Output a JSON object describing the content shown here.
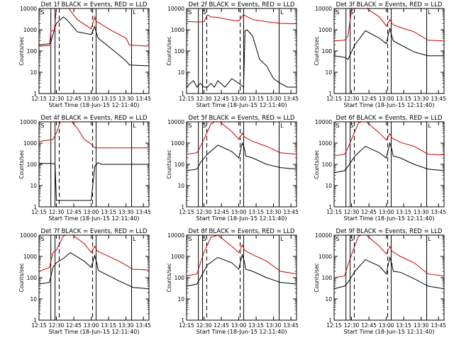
{
  "xlabel": "Start Time (18-Jun-15 12:11:40)",
  "ylabel": "Counts/sec",
  "colors": {
    "events": "#000000",
    "lld": "#cc0000"
  },
  "x_ticks": [
    "12:15",
    "12:30",
    "12:45",
    "13:00",
    "13:15",
    "13:30",
    "13:45"
  ],
  "y_ticks": [
    "1",
    "10",
    "100",
    "1000",
    "10000"
  ],
  "chart_data": [
    {
      "type": "line",
      "title": "Det 1f BLACK = Events, RED = LLD",
      "row": 0,
      "col": 0,
      "xlim": [
        12.25,
        13.83
      ],
      "ylim": [
        1,
        10000
      ],
      "yscale": "log",
      "series": [
        {
          "key": "events",
          "x": [
            12.25,
            12.4,
            12.42,
            12.47,
            12.5,
            12.6,
            12.65,
            12.8,
            13.0,
            13.05,
            13.07,
            13.1,
            13.3,
            13.5,
            13.55,
            13.83
          ],
          "values": [
            190,
            220,
            260,
            1000,
            2000,
            4000,
            3000,
            800,
            600,
            1400,
            800,
            400,
            120,
            35,
            22,
            20
          ]
        },
        {
          "key": "lld",
          "x": [
            12.25,
            12.4,
            12.42,
            12.47,
            12.5,
            12.6,
            12.65,
            12.8,
            13.0,
            13.05,
            13.07,
            13.1,
            13.3,
            13.5,
            13.55,
            13.83
          ],
          "values": [
            170,
            180,
            850,
            950,
            10000,
            15000,
            13000,
            3000,
            1100,
            4000,
            2500,
            2200,
            900,
            400,
            190,
            170
          ]
        }
      ],
      "vlines_solid": [
        12.42,
        12.48,
        13.07,
        13.58
      ],
      "vlines_dashed": [
        12.54,
        13.02
      ],
      "markers": [
        {
          "text": "S",
          "x": 12.3
        },
        {
          "text": "L",
          "x": 13.62
        }
      ]
    },
    {
      "type": "line",
      "title": "Det 2f BLACK = Events, RED = LLD",
      "row": 0,
      "col": 1,
      "xlim": [
        12.25,
        13.83
      ],
      "ylim": [
        1,
        10000
      ],
      "yscale": "log",
      "series": [
        {
          "key": "events",
          "x": [
            12.25,
            12.3,
            12.35,
            12.4,
            12.45,
            12.5,
            12.55,
            12.6,
            12.65,
            12.7,
            12.8,
            12.9,
            13.0,
            13.07,
            13.09,
            13.12,
            13.2,
            13.3,
            13.4,
            13.5,
            13.6,
            13.7,
            13.83
          ],
          "values": [
            2,
            3,
            4,
            2,
            3,
            2,
            2,
            3,
            2,
            4,
            2,
            5,
            3,
            2,
            900,
            1000,
            500,
            40,
            20,
            5,
            3,
            2,
            2
          ]
        },
        {
          "key": "lld",
          "x": [
            12.25,
            12.4,
            12.5,
            12.55,
            12.6,
            12.7,
            12.8,
            12.9,
            13.0,
            13.07,
            13.1,
            13.2,
            13.4,
            13.6,
            13.83
          ],
          "values": [
            2500,
            2300,
            2400,
            5000,
            4000,
            3800,
            3200,
            2800,
            2600,
            5200,
            4500,
            3000,
            2400,
            2000,
            1900
          ]
        }
      ],
      "vlines_solid": [
        12.42,
        12.48,
        13.07,
        13.58
      ],
      "vlines_dashed": [
        12.54,
        13.02
      ],
      "markers": [
        {
          "text": "S",
          "x": 12.3
        },
        {
          "text": "G",
          "x": 12.5
        },
        {
          "text": "L",
          "x": 13.62
        }
      ]
    },
    {
      "type": "line",
      "title": "Det 3f BLACK = Events, RED = LLD",
      "row": 0,
      "col": 2,
      "xlim": [
        12.25,
        13.83
      ],
      "ylim": [
        1,
        10000
      ],
      "yscale": "log",
      "series": [
        {
          "key": "events",
          "x": [
            12.25,
            12.4,
            12.45,
            12.55,
            12.7,
            12.9,
            13.0,
            13.05,
            13.08,
            13.1,
            13.2,
            13.4,
            13.6,
            13.83
          ],
          "values": [
            60,
            50,
            40,
            200,
            900,
            400,
            220,
            1200,
            500,
            300,
            200,
            90,
            60,
            60
          ]
        },
        {
          "key": "lld",
          "x": [
            12.25,
            12.4,
            12.45,
            12.5,
            12.6,
            12.7,
            12.9,
            13.0,
            13.05,
            13.08,
            13.1,
            13.2,
            13.4,
            13.6,
            13.83
          ],
          "values": [
            300,
            320,
            500,
            9000,
            14000,
            11000,
            4000,
            1500,
            3000,
            2000,
            1700,
            1300,
            800,
            320,
            300
          ]
        }
      ],
      "vlines_solid": [
        12.42,
        12.48,
        13.07,
        13.58
      ],
      "vlines_dashed": [
        12.54,
        13.02
      ],
      "markers": [
        {
          "text": "S",
          "x": 12.3
        },
        {
          "text": "G",
          "x": 12.5
        },
        {
          "text": "L",
          "x": 13.62
        }
      ]
    },
    {
      "type": "line",
      "title": "Det 4f BLACK = Events, RED = LLD",
      "row": 1,
      "col": 0,
      "xlim": [
        12.25,
        13.83
      ],
      "ylim": [
        1,
        10000
      ],
      "yscale": "log",
      "series": [
        {
          "key": "events",
          "x": [
            12.25,
            12.4,
            12.48,
            12.5,
            13.0,
            13.05,
            13.1,
            13.15,
            13.3,
            13.6,
            13.83
          ],
          "values": [
            110,
            110,
            105,
            2,
            2,
            80,
            120,
            100,
            100,
            100,
            100
          ]
        },
        {
          "key": "lld",
          "x": [
            12.25,
            12.4,
            12.45,
            12.5,
            12.55,
            12.6,
            12.7,
            12.8,
            12.9,
            13.0,
            13.05,
            13.2,
            13.5,
            13.83
          ],
          "values": [
            1200,
            1400,
            1500,
            3000,
            9000,
            15000,
            12000,
            5000,
            1500,
            900,
            600,
            600,
            600,
            600
          ]
        }
      ],
      "vlines_solid": [
        12.42,
        12.48,
        13.07,
        13.58
      ],
      "vlines_dashed": [
        12.54,
        13.02
      ],
      "markers": [
        {
          "text": "S",
          "x": 12.3
        },
        {
          "text": "L",
          "x": 13.62
        }
      ]
    },
    {
      "type": "line",
      "title": "Det 5f BLACK = Events, RED = LLD",
      "row": 1,
      "col": 1,
      "xlim": [
        12.25,
        13.83
      ],
      "ylim": [
        1,
        10000
      ],
      "yscale": "log",
      "series": [
        {
          "key": "events",
          "x": [
            12.25,
            12.4,
            12.45,
            12.55,
            12.7,
            12.9,
            13.0,
            13.05,
            13.08,
            13.1,
            13.2,
            13.4,
            13.6,
            13.83
          ],
          "values": [
            50,
            60,
            120,
            300,
            800,
            400,
            200,
            1000,
            600,
            250,
            200,
            100,
            70,
            60
          ]
        },
        {
          "key": "lld",
          "x": [
            12.25,
            12.4,
            12.45,
            12.5,
            12.6,
            12.7,
            12.9,
            13.0,
            13.05,
            13.08,
            13.1,
            13.2,
            13.4,
            13.6,
            13.83
          ],
          "values": [
            300,
            350,
            700,
            1500,
            8000,
            12000,
            3500,
            1500,
            3000,
            2000,
            1800,
            1200,
            700,
            350,
            300
          ]
        }
      ],
      "vlines_solid": [
        12.42,
        12.48,
        13.07,
        13.58
      ],
      "vlines_dashed": [
        12.54,
        13.02
      ],
      "markers": [
        {
          "text": "S",
          "x": 12.3
        },
        {
          "text": "G",
          "x": 12.5
        },
        {
          "text": "L",
          "x": 13.62
        }
      ]
    },
    {
      "type": "line",
      "title": "Det 6f BLACK = Events, RED = LLD",
      "row": 1,
      "col": 2,
      "xlim": [
        12.25,
        13.83
      ],
      "ylim": [
        1,
        10000
      ],
      "yscale": "log",
      "series": [
        {
          "key": "events",
          "x": [
            12.25,
            12.4,
            12.45,
            12.55,
            12.7,
            12.9,
            13.0,
            13.05,
            13.08,
            13.1,
            13.2,
            13.4,
            13.6,
            13.83
          ],
          "values": [
            40,
            50,
            80,
            250,
            700,
            350,
            200,
            1000,
            500,
            250,
            200,
            100,
            60,
            50
          ]
        },
        {
          "key": "lld",
          "x": [
            12.25,
            12.4,
            12.45,
            12.5,
            12.6,
            12.7,
            12.9,
            13.0,
            13.05,
            13.08,
            13.1,
            13.2,
            13.4,
            13.6,
            13.83
          ],
          "values": [
            250,
            300,
            600,
            1500,
            9000,
            11000,
            3000,
            1400,
            2800,
            1800,
            1600,
            1100,
            700,
            300,
            280
          ]
        }
      ],
      "vlines_solid": [
        12.42,
        12.48,
        13.07,
        13.58
      ],
      "vlines_dashed": [
        12.54,
        13.02
      ],
      "markers": [
        {
          "text": "S",
          "x": 12.3
        },
        {
          "text": "G",
          "x": 12.5
        },
        {
          "text": "L",
          "x": 13.62
        }
      ]
    },
    {
      "type": "line",
      "title": "Det 7f BLACK = Events, RED = LLD",
      "row": 2,
      "col": 0,
      "xlim": [
        12.25,
        13.83
      ],
      "ylim": [
        1,
        10000
      ],
      "yscale": "log",
      "series": [
        {
          "key": "events",
          "x": [
            12.25,
            12.4,
            12.45,
            12.5,
            12.6,
            12.7,
            12.9,
            13.0,
            13.05,
            13.08,
            13.1,
            13.2,
            13.4,
            13.6,
            13.83
          ],
          "values": [
            50,
            60,
            300,
            500,
            800,
            1500,
            600,
            300,
            1100,
            500,
            220,
            150,
            70,
            35,
            30
          ]
        },
        {
          "key": "lld",
          "x": [
            12.25,
            12.4,
            12.45,
            12.5,
            12.6,
            12.7,
            12.9,
            13.0,
            13.05,
            13.08,
            13.1,
            13.2,
            13.4,
            13.6,
            13.83
          ],
          "values": [
            200,
            300,
            1500,
            2000,
            9000,
            12000,
            4000,
            1500,
            3000,
            2000,
            1700,
            1200,
            600,
            250,
            230
          ]
        }
      ],
      "vlines_solid": [
        12.42,
        12.48,
        13.07,
        13.58
      ],
      "vlines_dashed": [
        12.54,
        13.02
      ],
      "markers": [
        {
          "text": "S",
          "x": 12.3
        },
        {
          "text": "L",
          "x": 13.62
        }
      ]
    },
    {
      "type": "line",
      "title": "Det 8f BLACK = Events, RED = LLD",
      "row": 2,
      "col": 1,
      "xlim": [
        12.25,
        13.83
      ],
      "ylim": [
        1,
        10000
      ],
      "yscale": "log",
      "series": [
        {
          "key": "events",
          "x": [
            12.25,
            12.4,
            12.45,
            12.55,
            12.7,
            12.9,
            13.0,
            13.05,
            13.08,
            13.1,
            13.2,
            13.4,
            13.6,
            13.83
          ],
          "values": [
            40,
            50,
            100,
            400,
            900,
            500,
            250,
            1200,
            600,
            250,
            200,
            100,
            60,
            50
          ]
        },
        {
          "key": "lld",
          "x": [
            12.25,
            12.4,
            12.45,
            12.5,
            12.6,
            12.7,
            12.9,
            13.0,
            13.05,
            13.08,
            13.1,
            13.2,
            13.4,
            13.6,
            13.83
          ],
          "values": [
            120,
            150,
            500,
            1500,
            8000,
            10000,
            3000,
            1500,
            3500,
            2000,
            1800,
            1200,
            600,
            200,
            150
          ]
        }
      ],
      "vlines_solid": [
        12.42,
        12.48,
        13.07,
        13.58
      ],
      "vlines_dashed": [
        12.54,
        13.02
      ],
      "markers": [
        {
          "text": "S",
          "x": 12.3
        },
        {
          "text": "G",
          "x": 12.5
        },
        {
          "text": "L",
          "x": 13.62
        }
      ]
    },
    {
      "type": "line",
      "title": "Det 9f BLACK = Events, RED = LLD",
      "row": 2,
      "col": 2,
      "xlim": [
        12.25,
        13.83
      ],
      "ylim": [
        1,
        10000
      ],
      "yscale": "log",
      "series": [
        {
          "key": "events",
          "x": [
            12.25,
            12.4,
            12.45,
            12.55,
            12.7,
            12.9,
            13.0,
            13.05,
            13.08,
            13.1,
            13.2,
            13.4,
            13.6,
            13.83
          ],
          "values": [
            30,
            40,
            60,
            200,
            700,
            350,
            150,
            900,
            450,
            200,
            180,
            90,
            40,
            30
          ]
        },
        {
          "key": "lld",
          "x": [
            12.25,
            12.4,
            12.45,
            12.5,
            12.6,
            12.7,
            12.9,
            13.0,
            13.05,
            13.08,
            13.1,
            13.2,
            13.4,
            13.6,
            13.83
          ],
          "values": [
            100,
            120,
            400,
            1200,
            9000,
            11000,
            3000,
            1300,
            3000,
            1800,
            1600,
            1000,
            500,
            150,
            120
          ]
        }
      ],
      "vlines_solid": [
        12.42,
        12.48,
        13.07,
        13.58
      ],
      "vlines_dashed": [
        12.54,
        13.02
      ],
      "markers": [
        {
          "text": "S",
          "x": 12.3
        },
        {
          "text": "G",
          "x": 12.5
        },
        {
          "text": "L",
          "x": 13.62
        }
      ]
    }
  ]
}
